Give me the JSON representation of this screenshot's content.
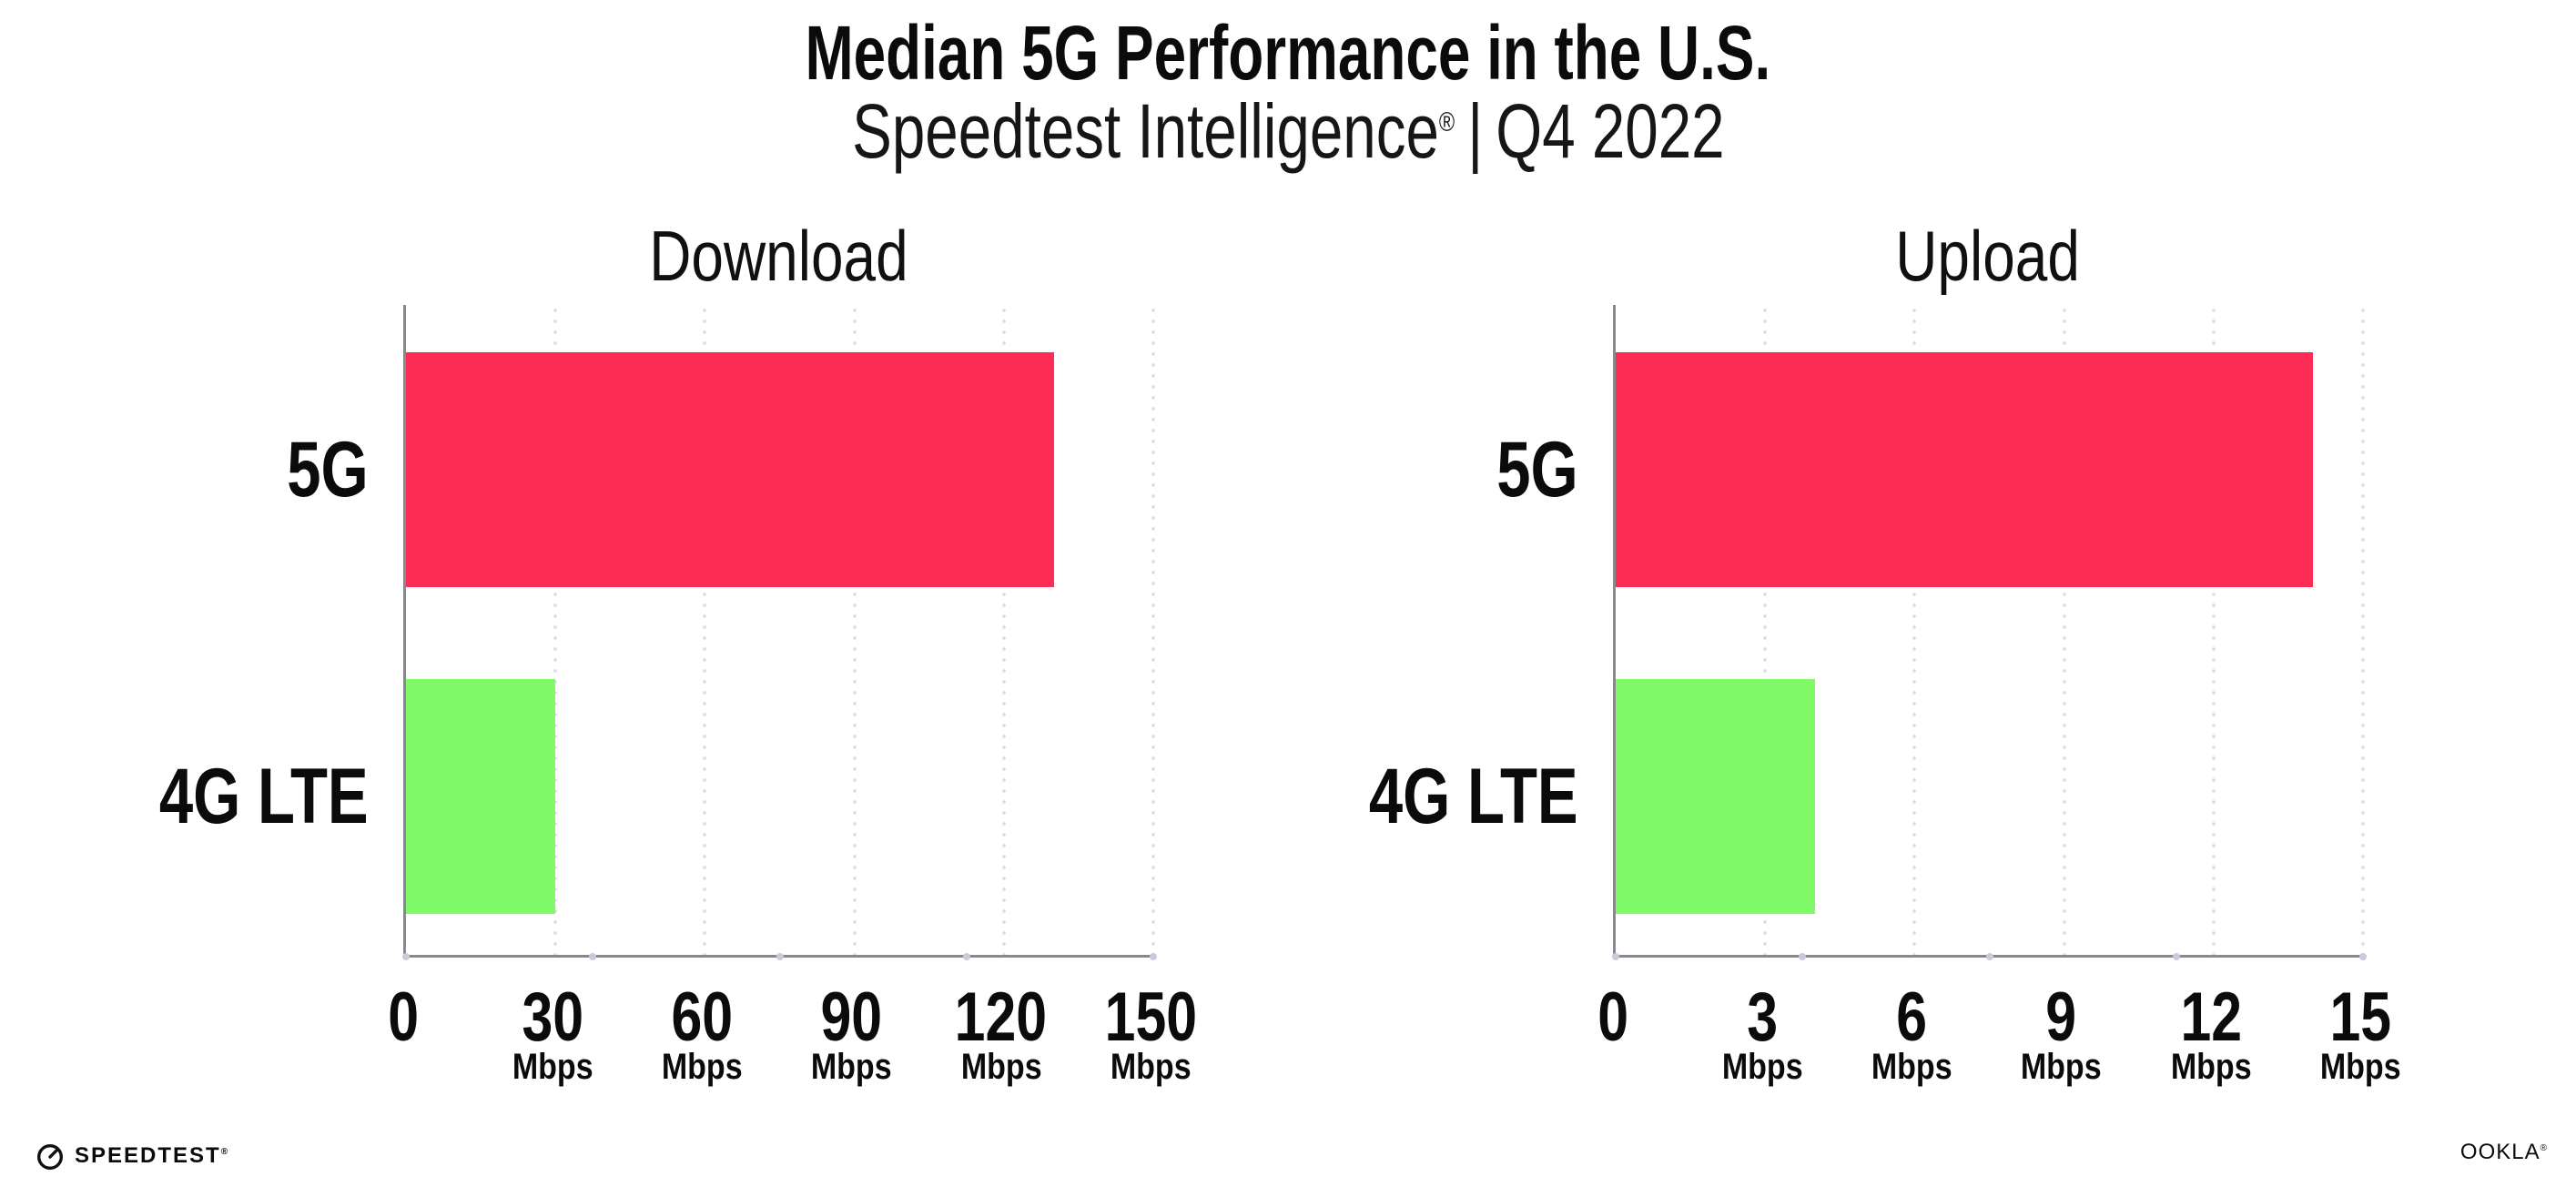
{
  "header": {
    "title": "Median 5G Performance in the U.S.",
    "subtitle": {
      "brand": "Speedtest Intelligence",
      "registered_mark": "®",
      "separator": "|",
      "period": "Q4 2022"
    }
  },
  "chart_data": [
    {
      "type": "bar",
      "orientation": "horizontal",
      "title": "Download",
      "categories": [
        "5G",
        "4G LTE"
      ],
      "values": [
        130,
        30
      ],
      "unit": "Mbps",
      "xlim": [
        0,
        150
      ],
      "xticks": [
        0,
        30,
        60,
        90,
        120,
        150
      ],
      "grid": "dotted-vertical",
      "legend": "none",
      "bar_colors": [
        "#fd2c55",
        "#80fa66"
      ]
    },
    {
      "type": "bar",
      "orientation": "horizontal",
      "title": "Upload",
      "categories": [
        "5G",
        "4G LTE"
      ],
      "values": [
        14,
        4
      ],
      "unit": "Mbps",
      "xlim": [
        0,
        15
      ],
      "xticks": [
        0,
        3,
        6,
        9,
        12,
        15
      ],
      "grid": "dotted-vertical",
      "legend": "none",
      "bar_colors": [
        "#fd2c55",
        "#80fa66"
      ]
    }
  ],
  "footer": {
    "speedtest_wordmark": "SPEEDTEST",
    "speedtest_mark": "®",
    "ookla_wordmark": "OOKLA",
    "ookla_mark": "®"
  },
  "colors": {
    "bar_5g": "#fd2c55",
    "bar_4g_lte": "#80fa66",
    "axis_line": "#88888f",
    "grid_dot": "#dcdce8",
    "axis_tick_dot": "#c9c9da",
    "text": "#0b0b0b"
  }
}
